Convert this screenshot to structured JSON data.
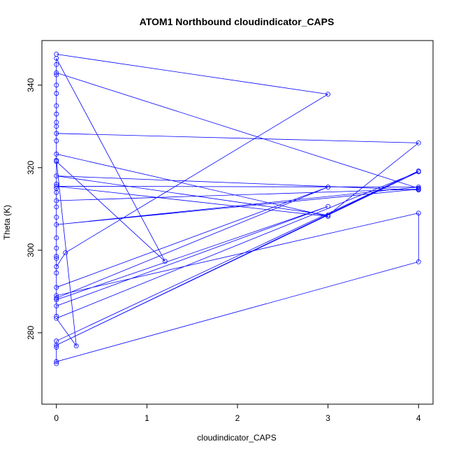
{
  "chart_data": {
    "type": "line",
    "title": "ATOM1 Northbound cloudindicator_CAPS",
    "x_label": "cloudindicator_CAPS",
    "y_label": "Theta (K)",
    "color": "#0000ff",
    "xlim": [
      -0.16,
      4.16
    ],
    "ylim": [
      262.7,
      350.8
    ],
    "xticks": [
      0,
      1,
      2,
      3,
      4
    ],
    "yticks": [
      280,
      300,
      320,
      340
    ],
    "x": [
      0,
      3,
      0.1,
      0,
      0,
      0,
      4,
      4,
      0,
      3,
      4,
      0,
      0,
      0,
      0,
      1.2,
      0,
      0,
      0,
      0,
      0,
      0,
      0,
      0,
      0,
      3,
      0,
      4,
      0,
      4,
      0,
      0,
      0,
      0,
      0,
      0,
      3,
      0,
      0,
      3,
      0,
      0,
      4,
      4,
      0,
      0,
      0,
      0,
      4,
      0,
      4,
      0,
      0.22,
      0,
      0,
      0,
      0,
      0,
      0,
      0
    ],
    "values": [
      347.5,
      337.8,
      299.4,
      296,
      298,
      343,
      315,
      314.6,
      318,
      308.5,
      326,
      328.3,
      330,
      335,
      321.5,
      297.3,
      346.5,
      345,
      342.5,
      340,
      338,
      333,
      331,
      326.5,
      323.3,
      308.2,
      315.5,
      315.3,
      306.2,
      314.8,
      312,
      310.5,
      308,
      303,
      300.5,
      288.4,
      315.3,
      291,
      288,
      310.6,
      286.5,
      289,
      309,
      297.2,
      273,
      272.5,
      276.5,
      278,
      319.2,
      277,
      319,
      283.5,
      276.8,
      321.8,
      316,
      315,
      314,
      298.5,
      294.5,
      284
    ]
  }
}
